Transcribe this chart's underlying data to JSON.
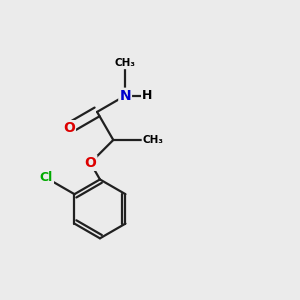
{
  "background_color": "#ebebeb",
  "atom_colors": {
    "C": "#000000",
    "H": "#000000",
    "O": "#dd0000",
    "N": "#0000cc",
    "Cl": "#00aa00"
  },
  "bond_color": "#202020",
  "bond_width": 1.6,
  "figsize": [
    3.0,
    3.0
  ],
  "dpi": 100,
  "xlim": [
    0.0,
    1.0
  ],
  "ylim": [
    0.0,
    1.0
  ]
}
